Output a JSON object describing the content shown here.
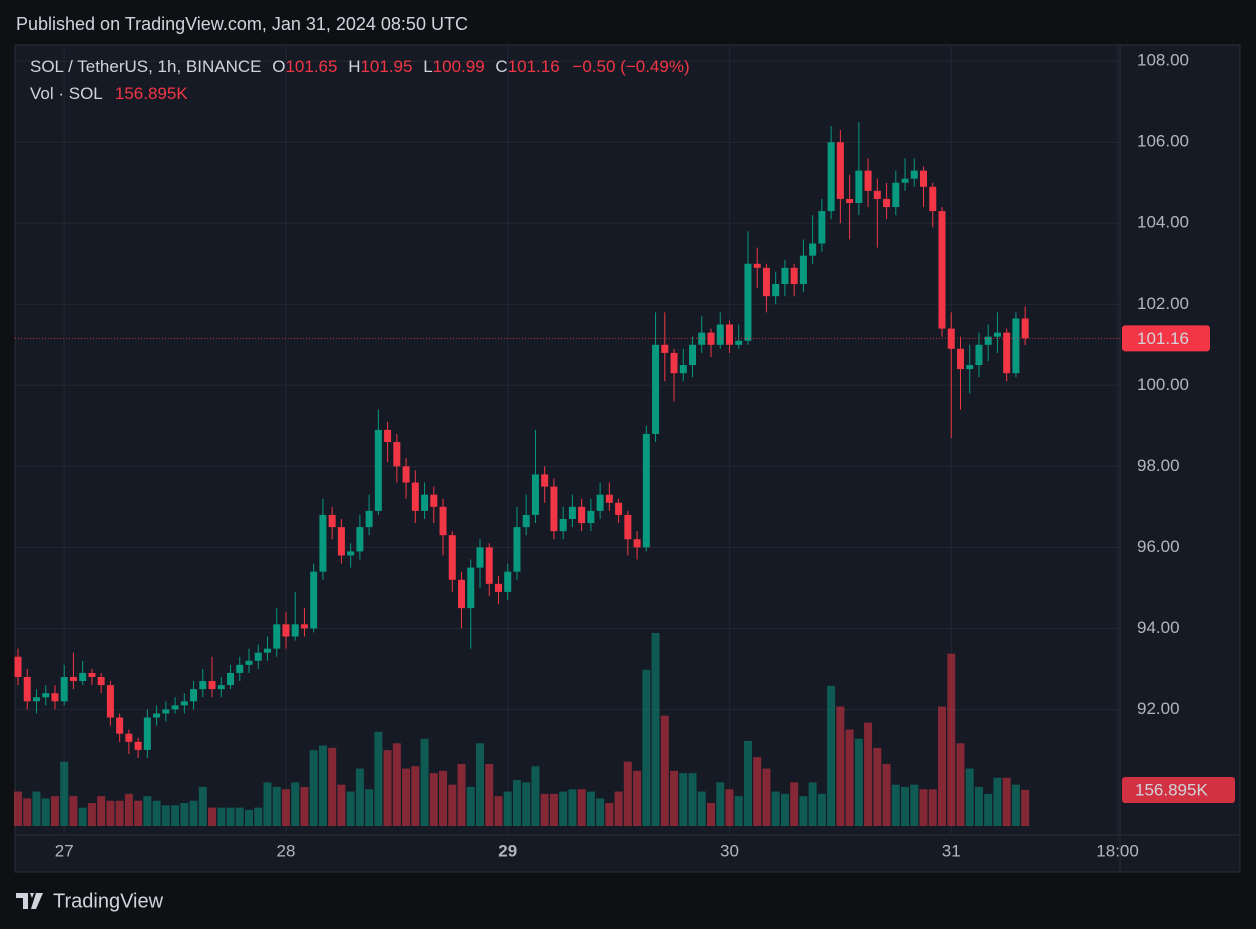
{
  "chart_data": {
    "type": "candlestick",
    "title": "Published on TradingView.com, Jan 31, 2024 08:50 UTC",
    "legend_title": "SOL / TetherUS, 1h, BINANCE",
    "ohlc_letters": [
      "O",
      "H",
      "L",
      "C"
    ],
    "change_label": "−0.50 (−0.49%)",
    "volume_title": "Vol · SOL",
    "volume_label": "156.895K",
    "brand": "TradingView",
    "up_color": "#089981",
    "down_color": "#f23645",
    "grid": true,
    "ylim": [
      88.9,
      108.4
    ],
    "yticks": [
      {
        "value": 92,
        "label": "92.00"
      },
      {
        "value": 94,
        "label": "94.00"
      },
      {
        "value": 96,
        "label": "96.00"
      },
      {
        "value": 98,
        "label": "98.00"
      },
      {
        "value": 100,
        "label": "100.00"
      },
      {
        "value": 102,
        "label": "102.00"
      },
      {
        "value": 104,
        "label": "104.00"
      },
      {
        "value": 106,
        "label": "106.00"
      },
      {
        "value": 108,
        "label": "108.00"
      }
    ],
    "xticks": [
      {
        "value": 5,
        "label": "27"
      },
      {
        "value": 29,
        "label": "28"
      },
      {
        "value": 53,
        "label": "29"
      },
      {
        "value": 77,
        "label": "30"
      },
      {
        "value": 101,
        "label": "31"
      },
      {
        "value": 119,
        "label": "18:00"
      }
    ],
    "open": [
      93.3,
      92.8,
      92.2,
      92.3,
      92.4,
      92.2,
      92.8,
      92.7,
      92.9,
      92.8,
      92.6,
      91.8,
      91.4,
      91.2,
      91.0,
      91.8,
      91.9,
      92.0,
      92.1,
      92.2,
      92.5,
      92.7,
      92.5,
      92.6,
      92.9,
      93.1,
      93.2,
      93.4,
      93.5,
      94.1,
      93.8,
      94.1,
      94.0,
      95.4,
      96.8,
      96.5,
      95.8,
      95.9,
      96.5,
      96.9,
      98.9,
      98.6,
      98.0,
      97.6,
      96.9,
      97.3,
      97.0,
      96.3,
      95.2,
      94.5,
      95.5,
      96.0,
      95.1,
      94.9,
      95.4,
      96.5,
      96.8,
      97.8,
      97.5,
      96.4,
      96.7,
      97.0,
      96.6,
      96.9,
      97.3,
      97.1,
      96.8,
      96.2,
      96.0,
      98.8,
      101.0,
      100.8,
      100.3,
      100.5,
      101.0,
      101.3,
      101.0,
      101.5,
      101.0,
      101.1,
      103.0,
      102.9,
      102.2,
      102.5,
      102.9,
      102.5,
      103.2,
      103.5,
      104.3,
      106.0,
      104.6,
      104.5,
      105.3,
      104.8,
      104.6,
      104.4,
      105.0,
      105.1,
      105.3,
      104.9,
      104.3,
      101.4,
      100.9,
      100.4,
      100.5,
      101.0,
      101.2,
      101.3,
      100.3,
      101.65
    ],
    "high": [
      93.5,
      93.0,
      92.5,
      92.6,
      92.6,
      93.1,
      93.4,
      93.2,
      93.0,
      92.9,
      92.7,
      91.9,
      91.5,
      91.3,
      92.0,
      92.1,
      92.2,
      92.3,
      92.4,
      92.7,
      93.0,
      93.3,
      92.8,
      93.1,
      93.3,
      93.5,
      93.6,
      93.8,
      94.5,
      94.4,
      94.9,
      94.5,
      95.6,
      97.2,
      97.0,
      96.7,
      96.1,
      96.8,
      97.3,
      99.4,
      99.1,
      98.8,
      98.2,
      97.9,
      97.6,
      97.5,
      97.2,
      96.4,
      95.4,
      95.7,
      96.2,
      96.1,
      95.3,
      95.6,
      97.0,
      97.3,
      98.9,
      98.0,
      97.7,
      97.0,
      97.3,
      97.2,
      97.2,
      97.6,
      97.6,
      97.2,
      96.9,
      96.4,
      99.0,
      101.8,
      101.8,
      100.9,
      100.9,
      101.2,
      101.7,
      101.4,
      101.8,
      101.6,
      101.5,
      103.8,
      103.4,
      103.0,
      102.8,
      103.1,
      103.0,
      103.6,
      104.2,
      104.6,
      106.4,
      106.3,
      105.2,
      106.5,
      105.6,
      105.1,
      105.0,
      105.3,
      105.6,
      105.6,
      105.4,
      105.0,
      104.4,
      101.8,
      101.2,
      101.0,
      101.3,
      101.5,
      101.8,
      101.4,
      101.8,
      101.95
    ],
    "low": [
      92.6,
      92.0,
      91.9,
      92.1,
      92.0,
      92.1,
      92.5,
      92.6,
      92.6,
      92.4,
      91.6,
      91.2,
      90.9,
      90.8,
      90.8,
      91.6,
      91.7,
      91.9,
      91.9,
      92.0,
      92.3,
      92.3,
      92.3,
      92.5,
      92.7,
      92.9,
      93.0,
      93.2,
      93.3,
      93.5,
      93.7,
      93.8,
      93.9,
      95.2,
      96.2,
      95.6,
      95.5,
      95.7,
      96.3,
      96.8,
      98.1,
      97.6,
      97.2,
      96.6,
      96.7,
      96.6,
      95.8,
      94.9,
      94.0,
      93.5,
      95.0,
      94.8,
      94.6,
      94.7,
      95.2,
      96.3,
      96.6,
      97.1,
      96.2,
      96.2,
      96.5,
      96.4,
      96.4,
      96.7,
      96.9,
      96.6,
      95.8,
      95.7,
      95.9,
      98.6,
      100.1,
      99.6,
      100.1,
      100.2,
      100.8,
      100.7,
      100.9,
      100.8,
      100.9,
      101.0,
      102.4,
      101.8,
      102.0,
      102.2,
      102.2,
      102.3,
      103.0,
      103.3,
      104.1,
      104.0,
      103.6,
      104.2,
      104.4,
      103.4,
      104.1,
      104.2,
      104.8,
      104.9,
      104.4,
      103.9,
      101.2,
      98.7,
      99.4,
      99.8,
      100.2,
      100.6,
      100.8,
      100.1,
      100.2,
      100.99
    ],
    "close": [
      92.8,
      92.2,
      92.3,
      92.4,
      92.2,
      92.8,
      92.7,
      92.9,
      92.8,
      92.6,
      91.8,
      91.4,
      91.2,
      91.0,
      91.8,
      91.9,
      92.0,
      92.1,
      92.2,
      92.5,
      92.7,
      92.5,
      92.6,
      92.9,
      93.1,
      93.2,
      93.4,
      93.5,
      94.1,
      93.8,
      94.1,
      94.0,
      95.4,
      96.8,
      96.5,
      95.8,
      95.9,
      96.5,
      96.9,
      98.9,
      98.6,
      98.0,
      97.6,
      96.9,
      97.3,
      97.0,
      96.3,
      95.2,
      94.5,
      95.5,
      96.0,
      95.1,
      94.9,
      95.4,
      96.5,
      96.8,
      97.8,
      97.5,
      96.4,
      96.7,
      97.0,
      96.6,
      96.9,
      97.3,
      97.1,
      96.8,
      96.2,
      96.0,
      98.8,
      101.0,
      100.8,
      100.3,
      100.5,
      101.0,
      101.3,
      101.0,
      101.5,
      101.0,
      101.1,
      103.0,
      102.9,
      102.2,
      102.5,
      102.9,
      102.5,
      103.2,
      103.5,
      104.3,
      106.0,
      104.6,
      104.5,
      105.3,
      104.8,
      104.6,
      104.4,
      105.0,
      105.1,
      105.3,
      104.9,
      104.3,
      101.4,
      100.9,
      100.4,
      100.5,
      101.0,
      101.2,
      101.3,
      100.3,
      101.65,
      101.16
    ],
    "volume": [
      150,
      120,
      150,
      120,
      130,
      280,
      130,
      80,
      100,
      130,
      110,
      110,
      140,
      110,
      130,
      110,
      90,
      90,
      100,
      110,
      170,
      80,
      80,
      80,
      80,
      70,
      80,
      190,
      170,
      160,
      190,
      170,
      330,
      350,
      340,
      180,
      150,
      250,
      160,
      410,
      330,
      360,
      250,
      260,
      380,
      230,
      240,
      180,
      270,
      170,
      360,
      270,
      130,
      150,
      200,
      190,
      260,
      140,
      140,
      150,
      160,
      160,
      150,
      120,
      100,
      150,
      280,
      240,
      680,
      840,
      480,
      240,
      230,
      230,
      150,
      100,
      190,
      160,
      130,
      370,
      300,
      250,
      150,
      140,
      190,
      130,
      190,
      140,
      610,
      520,
      420,
      380,
      450,
      340,
      270,
      180,
      170,
      180,
      160,
      160,
      520,
      750,
      360,
      250,
      170,
      140,
      210,
      210,
      180,
      156.895
    ]
  }
}
